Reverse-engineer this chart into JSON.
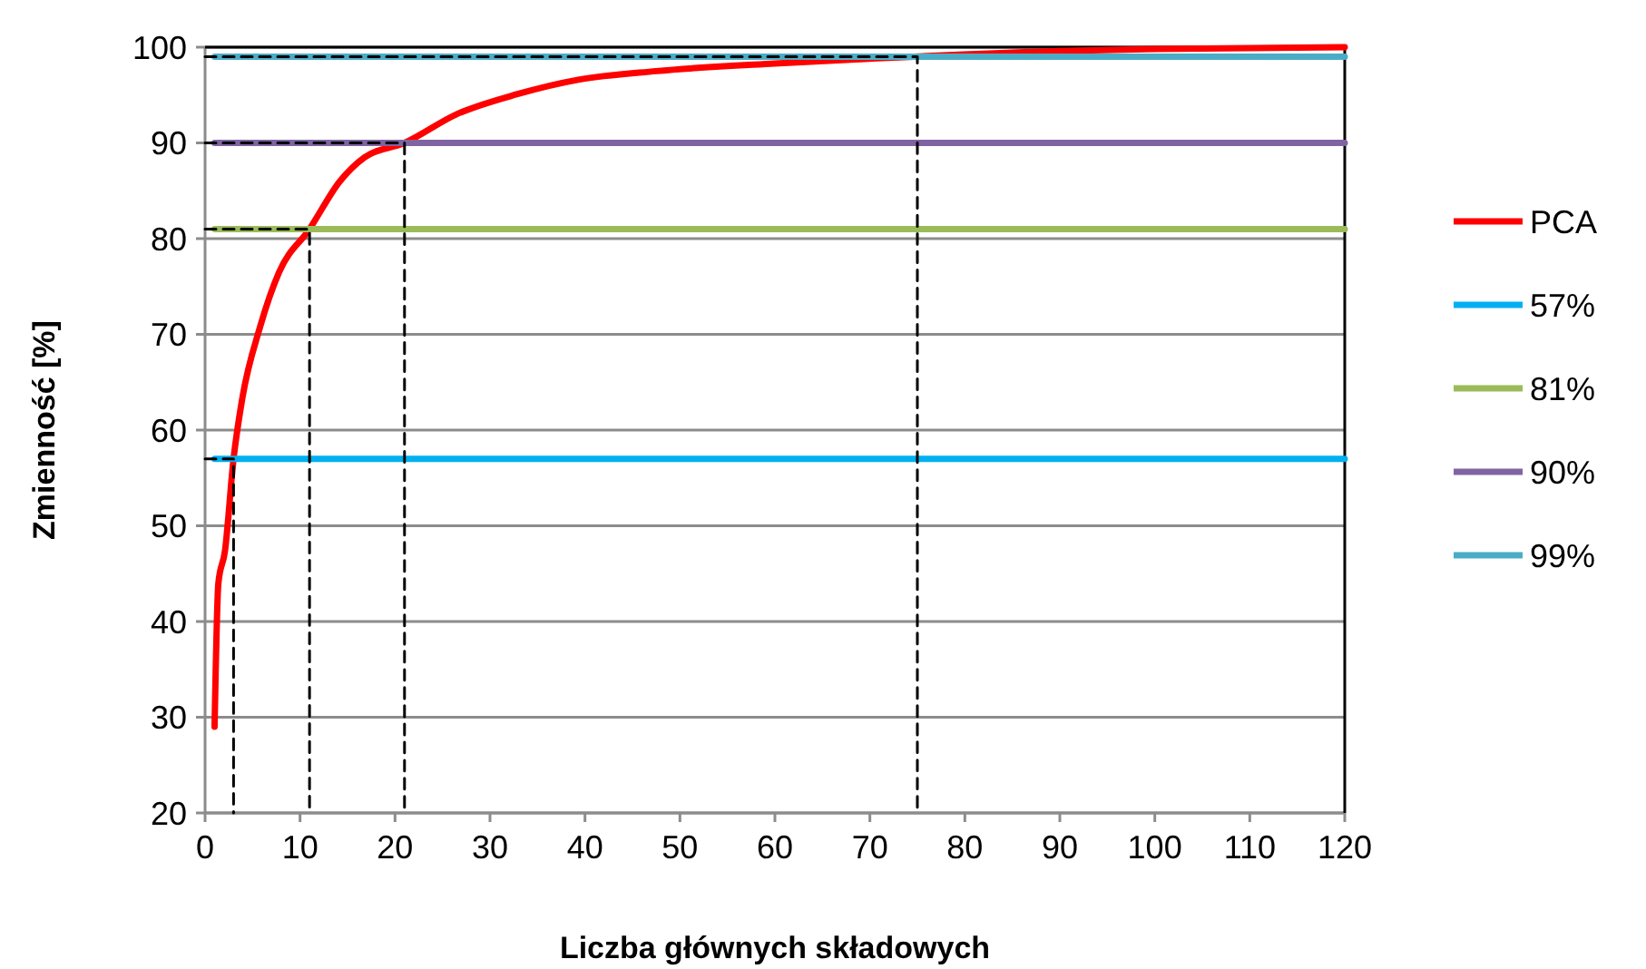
{
  "chart_data": {
    "type": "line",
    "xlabel": "Liczba głównych składowych",
    "ylabel": "Zmienność [%]",
    "xlim": [
      0,
      120
    ],
    "xticks": [
      0,
      10,
      20,
      30,
      40,
      50,
      60,
      70,
      80,
      90,
      100,
      110,
      120
    ],
    "ylim": [
      20,
      100
    ],
    "yticks": [
      20,
      30,
      40,
      50,
      60,
      70,
      80,
      90,
      100
    ],
    "grid": "y",
    "legend": "right",
    "marker": "none",
    "series": [
      {
        "name": "PCA",
        "color": "#ff0000",
        "x": [
          1,
          1.4,
          2.1,
          3,
          3.9,
          5.8,
          7.8,
          11,
          14.2,
          16.8,
          21,
          26.5,
          32.9,
          39.3,
          47.5,
          60,
          68,
          90,
          100,
          120
        ],
        "values": [
          29,
          44,
          47.4,
          57,
          63.2,
          70.8,
          76.5,
          81,
          86,
          88.5,
          90,
          93,
          95.1,
          96.6,
          97.5,
          98.3,
          98.7,
          99.6,
          99.8,
          100
        ]
      },
      {
        "name": "57%",
        "color": "#00b0f0",
        "x": [
          1,
          120
        ],
        "values": [
          57,
          57
        ]
      },
      {
        "name": "81%",
        "color": "#9bbb59",
        "x": [
          1,
          120
        ],
        "values": [
          81,
          81
        ]
      },
      {
        "name": "90%",
        "color": "#8064a2",
        "x": [
          1,
          120
        ],
        "values": [
          90,
          90
        ]
      },
      {
        "name": "99%",
        "color": "#4bacc6",
        "x": [
          1,
          120
        ],
        "values": [
          99,
          99
        ]
      },
      {
        "color": "#000000",
        "line_style": "dashed",
        "x": [
          0,
          3,
          3
        ],
        "values": [
          57,
          57,
          20
        ]
      },
      {
        "color": "#000000",
        "line_style": "dashed",
        "x": [
          0,
          11,
          11
        ],
        "values": [
          81,
          81,
          20
        ]
      },
      {
        "color": "#000000",
        "line_style": "dashed",
        "x": [
          0,
          21,
          21
        ],
        "values": [
          90,
          90,
          20
        ]
      },
      {
        "color": "#000000",
        "line_style": "dashed",
        "x": [
          0,
          75,
          75
        ],
        "values": [
          99,
          99,
          20
        ]
      }
    ]
  }
}
